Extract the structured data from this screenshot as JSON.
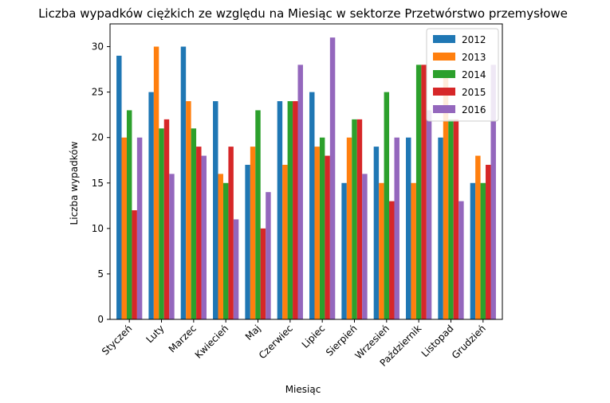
{
  "chart_data": {
    "type": "bar",
    "title": "Liczba wypadków ciężkich ze względu na Miesiąc w sektorze Przetwórstwo przemysłowe",
    "xlabel": "Miesiąc",
    "ylabel": "Liczba wypadków",
    "ylim": [
      0,
      32.5
    ],
    "yticks": [
      0,
      5,
      10,
      15,
      20,
      25,
      30
    ],
    "grid": false,
    "legend_position": "top-right",
    "categories": [
      "Styczeń",
      "Luty",
      "Marzec",
      "Kwiecień",
      "Maj",
      "Czerwiec",
      "Lipiec",
      "Sierpień",
      "Wrzesień",
      "Październik",
      "Listopad",
      "Grudzień"
    ],
    "series": [
      {
        "name": "2012",
        "color": "#1f77b4",
        "values": [
          29,
          25,
          30,
          24,
          17,
          24,
          25,
          15,
          19,
          20,
          20,
          15
        ]
      },
      {
        "name": "2013",
        "color": "#ff7f0e",
        "values": [
          20,
          30,
          24,
          16,
          19,
          17,
          19,
          20,
          15,
          15,
          27,
          18
        ]
      },
      {
        "name": "2014",
        "color": "#2ca02c",
        "values": [
          23,
          21,
          21,
          15,
          23,
          24,
          20,
          22,
          25,
          28,
          22,
          15
        ]
      },
      {
        "name": "2015",
        "color": "#d62728",
        "values": [
          12,
          22,
          19,
          19,
          10,
          24,
          18,
          22,
          13,
          28,
          22,
          17
        ]
      },
      {
        "name": "2016",
        "color": "#9467bd",
        "values": [
          20,
          16,
          18,
          11,
          14,
          28,
          31,
          16,
          20,
          23,
          13,
          28
        ]
      }
    ]
  }
}
